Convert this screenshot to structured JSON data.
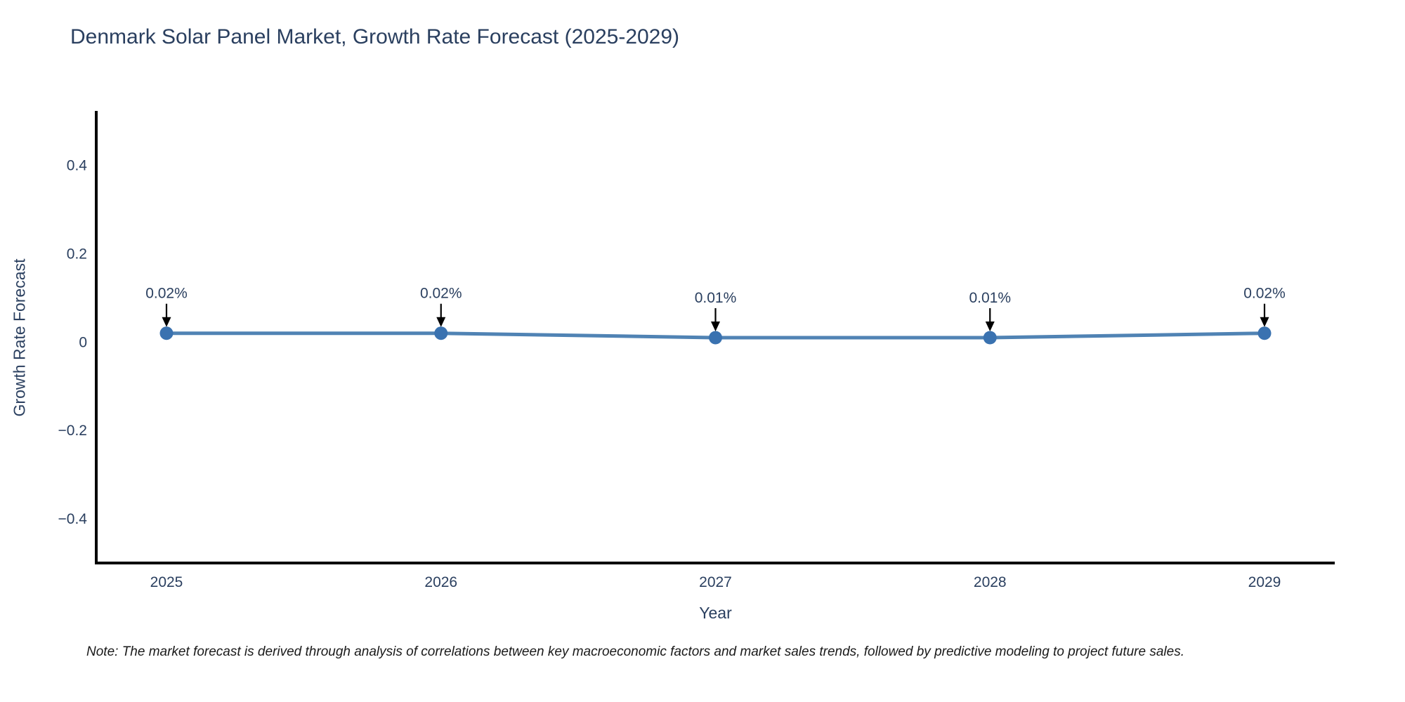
{
  "title": "Denmark Solar Panel Market, Growth Rate Forecast (2025-2029)",
  "note": "Note: The market forecast is derived through analysis of correlations between key macroeconomic factors and market sales trends, followed by predictive modeling to project future sales.",
  "chart_data": {
    "type": "line",
    "title": "Denmark Solar Panel Market, Growth Rate Forecast (2025-2029)",
    "xlabel": "Year",
    "ylabel": "Growth Rate Forecast",
    "categories": [
      "2025",
      "2026",
      "2027",
      "2028",
      "2029"
    ],
    "values": [
      0.02,
      0.02,
      0.01,
      0.01,
      0.02
    ],
    "point_labels": [
      "0.02%",
      "0.02%",
      "0.01%",
      "0.01%",
      "0.02%"
    ],
    "yticks": [
      0.4,
      0.2,
      0,
      -0.2,
      -0.4
    ],
    "ylim": [
      -0.5,
      0.52
    ],
    "grid": false,
    "legend": "none",
    "annotation_style": "black down-arrow from label to point",
    "colors": {
      "line": "#5083b4",
      "marker": "#3a72b0",
      "axis": "#000000",
      "text": "#2a3f5f",
      "annotation": "#2a3f5f",
      "arrow": "#000000",
      "title": "#2a3f5f",
      "note_text": "#1a1a1a",
      "background": "#ffffff"
    }
  }
}
